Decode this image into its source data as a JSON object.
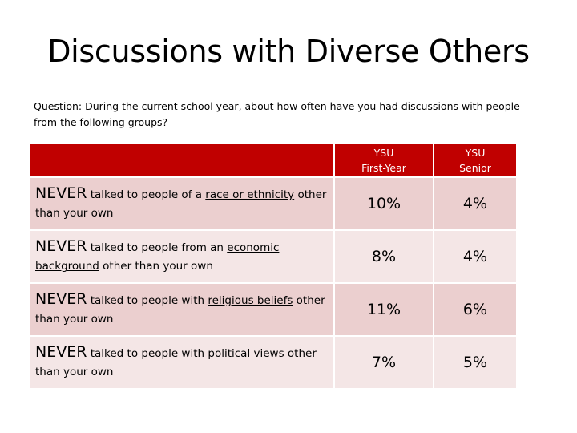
{
  "title": "Discussions with Diverse Others",
  "question": "Question: During the current school year, about how often have you had discussions with people from the following groups?",
  "table": {
    "header": {
      "col1_line1": "YSU",
      "col1_line2": "First-Year",
      "col2_line1": "YSU",
      "col2_line2": "Senior"
    },
    "rows": [
      {
        "never": "NEVER",
        "pre": " talked to people of a ",
        "topic": "race or ethnicity",
        "post": " other than your own",
        "first_year": "10%",
        "senior": "4%"
      },
      {
        "never": "NEVER",
        "pre": " talked to people from an ",
        "topic": "economic background",
        "post": " other than your own",
        "first_year": "8%",
        "senior": "4%"
      },
      {
        "never": "NEVER",
        "pre": " talked to people with ",
        "topic": "religious beliefs",
        "post": " other than your own",
        "first_year": "11%",
        "senior": "6%"
      },
      {
        "never": "NEVER",
        "pre": " talked to people with ",
        "topic": "political views",
        "post": " other than your own",
        "first_year": "7%",
        "senior": "5%"
      }
    ]
  },
  "colors": {
    "header_bg": "#c00000",
    "row_odd": "#ebcfcf",
    "row_even": "#f4e6e6"
  }
}
